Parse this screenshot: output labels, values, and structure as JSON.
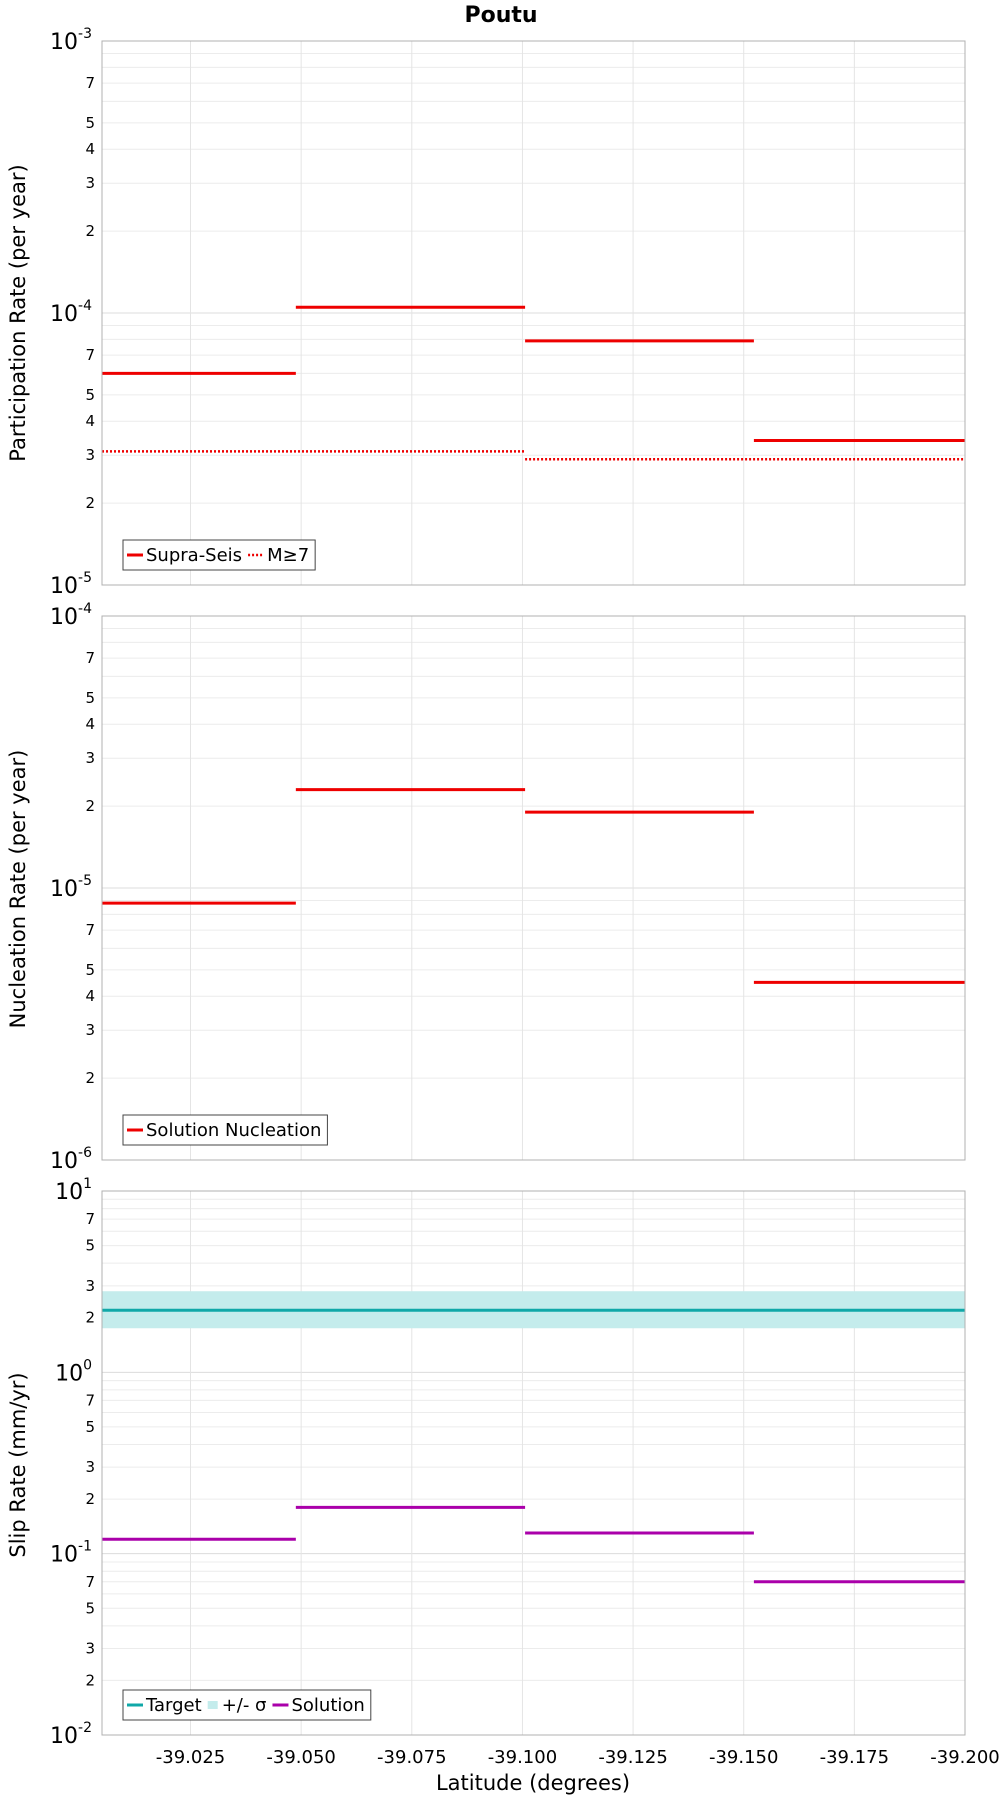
{
  "chart_data": {
    "title": "Poutu",
    "xlabel": "Latitude (degrees)",
    "xlim": [
      -39.005,
      -39.2
    ],
    "xticks": [
      "-39.025",
      "-39.050",
      "-39.075",
      "-39.100",
      "-39.125",
      "-39.150",
      "-39.175",
      "-39.200"
    ],
    "xtick_values": [
      -39.025,
      -39.05,
      -39.075,
      -39.1,
      -39.125,
      -39.15,
      -39.175,
      -39.2
    ],
    "panels": [
      {
        "type": "line",
        "scale": "log",
        "ylabel": "Participation Rate (per year)",
        "ylim": [
          1e-05,
          0.001
        ],
        "yticks": [
          {
            "value": 0.001,
            "mantissa": "10",
            "exp": "-3",
            "major": true
          },
          {
            "value": 0.0007,
            "label": "7"
          },
          {
            "value": 0.0005,
            "label": "5"
          },
          {
            "value": 0.0004,
            "label": "4"
          },
          {
            "value": 0.0003,
            "label": "3"
          },
          {
            "value": 0.0002,
            "label": "2"
          },
          {
            "value": 0.0001,
            "mantissa": "10",
            "exp": "-4",
            "major": true
          },
          {
            "value": 7e-05,
            "label": "7"
          },
          {
            "value": 5e-05,
            "label": "5"
          },
          {
            "value": 4e-05,
            "label": "4"
          },
          {
            "value": 3e-05,
            "label": "3"
          },
          {
            "value": 2e-05,
            "label": "2"
          },
          {
            "value": 1e-05,
            "mantissa": "10",
            "exp": "-5",
            "major": true
          }
        ],
        "series": [
          {
            "name": "Supra-Seis",
            "color": "#ee0000",
            "style": "solid",
            "segments": [
              [
                -39.005,
                -39.0488,
                6e-05
              ],
              [
                -39.0488,
                -39.1006,
                0.000105
              ],
              [
                -39.1006,
                -39.1523,
                7.9e-05
              ],
              [
                -39.1523,
                -39.2,
                3.4e-05
              ]
            ]
          },
          {
            "name": "M≥7",
            "color": "#ee0000",
            "style": "dotted",
            "segments": [
              [
                -39.005,
                -39.1006,
                3.1e-05
              ],
              [
                -39.1006,
                -39.2,
                2.9e-05
              ]
            ]
          }
        ],
        "legend": [
          "Supra-Seis",
          "M≥7"
        ]
      },
      {
        "type": "line",
        "scale": "log",
        "ylabel": "Nucleation Rate (per year)",
        "ylim": [
          1e-06,
          0.0001
        ],
        "yticks": [
          {
            "value": 0.0001,
            "mantissa": "10",
            "exp": "-4",
            "major": true
          },
          {
            "value": 7e-05,
            "label": "7"
          },
          {
            "value": 5e-05,
            "label": "5"
          },
          {
            "value": 4e-05,
            "label": "4"
          },
          {
            "value": 3e-05,
            "label": "3"
          },
          {
            "value": 2e-05,
            "label": "2"
          },
          {
            "value": 1e-05,
            "mantissa": "10",
            "exp": "-5",
            "major": true
          },
          {
            "value": 7e-06,
            "label": "7"
          },
          {
            "value": 5e-06,
            "label": "5"
          },
          {
            "value": 4e-06,
            "label": "4"
          },
          {
            "value": 3e-06,
            "label": "3"
          },
          {
            "value": 2e-06,
            "label": "2"
          },
          {
            "value": 1e-06,
            "mantissa": "10",
            "exp": "-6",
            "major": true
          }
        ],
        "series": [
          {
            "name": "Solution Nucleation",
            "color": "#ee0000",
            "style": "solid",
            "segments": [
              [
                -39.005,
                -39.0488,
                8.8e-06
              ],
              [
                -39.0488,
                -39.1006,
                2.3e-05
              ],
              [
                -39.1006,
                -39.1523,
                1.9e-05
              ],
              [
                -39.1523,
                -39.2,
                4.5e-06
              ]
            ]
          }
        ],
        "legend": [
          "Solution Nucleation"
        ]
      },
      {
        "type": "line",
        "scale": "log",
        "ylabel": "Slip Rate (mm/yr)",
        "ylim": [
          0.01,
          10
        ],
        "yticks": [
          {
            "value": 10,
            "mantissa": "10",
            "exp": "1",
            "major": true
          },
          {
            "value": 7,
            "label": "7"
          },
          {
            "value": 5,
            "label": "5"
          },
          {
            "value": 3,
            "label": "3"
          },
          {
            "value": 2,
            "label": "2"
          },
          {
            "value": 1,
            "mantissa": "10",
            "exp": "0",
            "major": true
          },
          {
            "value": 0.7,
            "label": "7"
          },
          {
            "value": 0.5,
            "label": "5"
          },
          {
            "value": 0.3,
            "label": "3"
          },
          {
            "value": 0.2,
            "label": "2"
          },
          {
            "value": 0.1,
            "mantissa": "10",
            "exp": "-1",
            "major": true
          },
          {
            "value": 0.07,
            "label": "7"
          },
          {
            "value": 0.05,
            "label": "5"
          },
          {
            "value": 0.03,
            "label": "3"
          },
          {
            "value": 0.02,
            "label": "2"
          },
          {
            "value": 0.01,
            "mantissa": "10",
            "exp": "-2",
            "major": true
          }
        ],
        "band": {
          "name": "+/- σ",
          "color": "#c4ecec",
          "lower": 1.75,
          "upper": 2.8
        },
        "series": [
          {
            "name": "Target",
            "color": "#10a8a8",
            "style": "solid",
            "segments": [
              [
                -39.005,
                -39.2,
                2.2
              ]
            ]
          },
          {
            "name": "Solution",
            "color": "#aa00aa",
            "style": "solid",
            "segments": [
              [
                -39.005,
                -39.0488,
                0.12
              ],
              [
                -39.0488,
                -39.1006,
                0.18
              ],
              [
                -39.1006,
                -39.1523,
                0.13
              ],
              [
                -39.1523,
                -39.2,
                0.07
              ]
            ]
          }
        ],
        "legend": [
          "Target",
          "+/- σ",
          "Solution"
        ]
      }
    ]
  }
}
